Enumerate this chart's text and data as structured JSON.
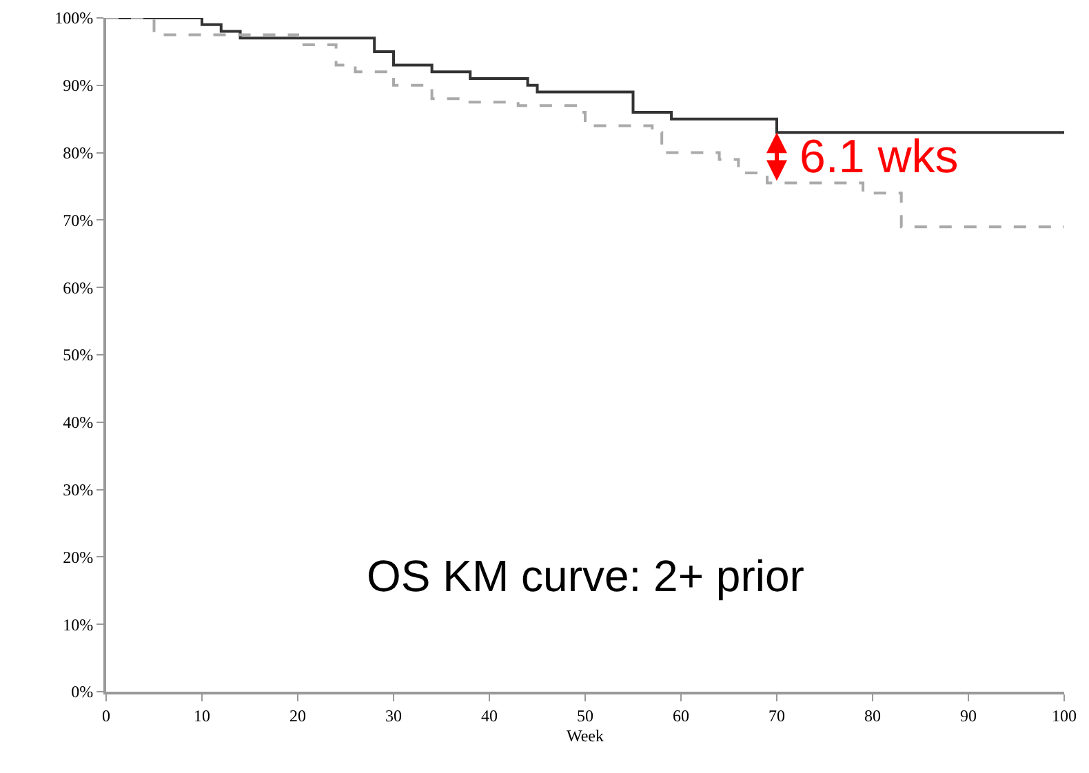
{
  "chart_data": {
    "type": "step",
    "xlabel": "Week",
    "x": [
      0,
      5,
      9,
      10,
      12,
      14,
      20,
      24,
      26,
      28,
      30,
      33,
      34,
      36,
      37,
      38,
      43,
      44,
      45,
      49,
      50,
      54,
      55,
      57,
      58,
      59,
      63,
      64,
      66,
      69,
      70,
      78,
      79,
      82,
      83,
      100
    ],
    "series": [
      {
        "color": "#333333",
        "line_style": "solid",
        "values": [
          100,
          100,
          100,
          99,
          98,
          97,
          97,
          97,
          97,
          95,
          93,
          93,
          92,
          92,
          92,
          91,
          91,
          90,
          89,
          89,
          89,
          89,
          86,
          86,
          86,
          85,
          85,
          85,
          85,
          85,
          83,
          83,
          83,
          83,
          83,
          83
        ]
      },
      {
        "color": "#aaaaaa",
        "line_style": "dashed",
        "values": [
          100,
          97.5,
          97.5,
          97.5,
          97.5,
          97.5,
          96,
          93,
          92,
          92,
          90,
          90,
          88,
          88,
          87.5,
          87.5,
          87,
          87,
          87,
          86,
          84,
          84,
          84,
          83,
          80,
          80,
          80,
          79,
          77,
          75.5,
          75.5,
          75.5,
          74,
          74,
          69,
          69
        ]
      }
    ],
    "xlim": [
      0,
      100
    ],
    "xticks": [
      0,
      10,
      20,
      30,
      40,
      50,
      60,
      70,
      80,
      90,
      100
    ],
    "ylim": [
      0,
      100
    ],
    "yticks": [
      {
        "value": 0,
        "label": "0%"
      },
      {
        "value": 10,
        "label": "10%"
      },
      {
        "value": 20,
        "label": "20%"
      },
      {
        "value": 30,
        "label": "30%"
      },
      {
        "value": 40,
        "label": "40%"
      },
      {
        "value": 50,
        "label": "50%"
      },
      {
        "value": 60,
        "label": "60%"
      },
      {
        "value": 70,
        "label": "70%"
      },
      {
        "value": 80,
        "label": "80%"
      },
      {
        "value": 90,
        "label": "90%"
      },
      {
        "value": 100,
        "label": "100%"
      }
    ],
    "grid": false,
    "annotations": [
      {
        "text": "6.1 wks",
        "x": 70,
        "y": 83
      },
      "OS KM curve: 2+ prior"
    ]
  }
}
